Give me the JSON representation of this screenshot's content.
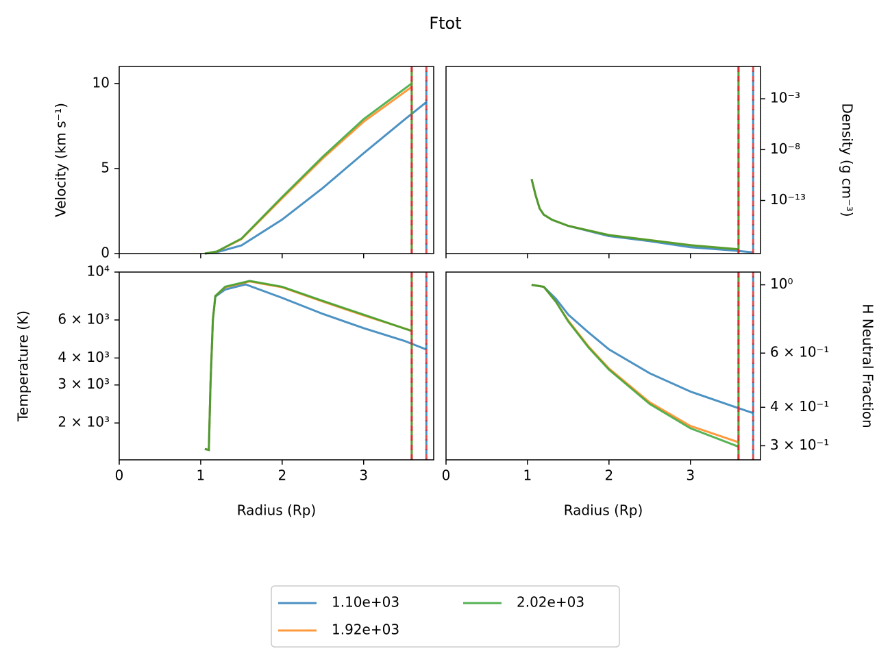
{
  "title": "Ftot",
  "series": [
    {
      "name": "1.10e+03",
      "color": "#1f77b4"
    },
    {
      "name": "1.92e+03",
      "color": "#ff7f0e"
    },
    {
      "name": "2.02e+03",
      "color": "#2ca02c"
    }
  ],
  "vline_color": "#d62728",
  "vlines": [
    {
      "x": 3.77,
      "color": "#1f77b4"
    },
    {
      "x": 3.59,
      "color": "#ff7f0e"
    },
    {
      "x": 3.59,
      "color": "#2ca02c"
    }
  ],
  "chart_data": [
    {
      "type": "line",
      "ylabel": "Velocity (km s⁻¹)",
      "y_side": "left",
      "log_y": false,
      "xlim": [
        0,
        3.86
      ],
      "xticks": [
        0,
        1,
        2,
        3
      ],
      "ylim": [
        0,
        11
      ],
      "yticks": [
        0,
        5,
        10
      ],
      "series": [
        {
          "x": [
            1.05,
            1.2,
            1.5,
            2,
            2.5,
            3,
            3.5,
            3.77
          ],
          "values": [
            0,
            0.08,
            0.48,
            2.0,
            3.86,
            5.9,
            7.87,
            8.9
          ]
        },
        {
          "x": [
            1.05,
            1.2,
            1.5,
            2,
            2.5,
            3,
            3.59
          ],
          "values": [
            0,
            0.12,
            0.85,
            3.25,
            5.6,
            7.75,
            9.8
          ]
        },
        {
          "x": [
            1.05,
            1.2,
            1.5,
            2,
            2.5,
            3,
            3.59
          ],
          "values": [
            0,
            0.13,
            0.88,
            3.33,
            5.7,
            7.9,
            10.0
          ]
        }
      ]
    },
    {
      "type": "line",
      "ylabel": "Density (g cm⁻³)",
      "y_side": "right",
      "log_y": true,
      "xlim": [
        0,
        3.86
      ],
      "xticks": [
        0,
        1,
        2,
        3
      ],
      "ylim": [
        6e-19,
        1.5
      ],
      "yticks": [
        {
          "value": 0.001,
          "label": "10⁻³"
        },
        {
          "value": 1e-08,
          "label": "10⁻⁸"
        },
        {
          "value": 1e-13,
          "label": "10⁻¹³"
        }
      ],
      "series": [
        {
          "x": [
            1.05,
            1.1,
            1.15,
            1.2,
            1.3,
            1.5,
            2,
            2.5,
            3,
            3.5,
            3.77
          ],
          "values": [
            1.26e-11,
            3.16e-13,
            1.58e-14,
            3.98e-15,
            1.26e-15,
            3.16e-16,
            3.16e-17,
            1e-17,
            2.5e-18,
            1.26e-18,
            7.9e-19
          ]
        },
        {
          "x": [
            1.05,
            1.1,
            1.15,
            1.2,
            1.3,
            1.5,
            2,
            2.5,
            3,
            3.59
          ],
          "values": [
            1.26e-11,
            3.16e-13,
            1.58e-14,
            3.98e-15,
            1.26e-15,
            3.16e-16,
            3.98e-17,
            1.26e-17,
            3.98e-18,
            1.58e-18
          ]
        },
        {
          "x": [
            1.05,
            1.1,
            1.15,
            1.2,
            1.3,
            1.5,
            2,
            2.5,
            3,
            3.59
          ],
          "values": [
            1.26e-11,
            3.16e-13,
            1.58e-14,
            3.98e-15,
            1.26e-15,
            3.16e-16,
            3.98e-17,
            1.26e-17,
            3.98e-18,
            1.58e-18
          ]
        }
      ]
    },
    {
      "type": "line",
      "ylabel": "Temperature (K)",
      "xlabel": "Radius (Rp)",
      "y_side": "left",
      "log_y": true,
      "xlim": [
        0,
        3.86
      ],
      "xticks": [
        0,
        1,
        2,
        3
      ],
      "ylim": [
        1350,
        10000
      ],
      "yticks": [
        {
          "value": 2000,
          "label": "2 × 10³"
        },
        {
          "value": 3000,
          "label": "3 × 10³"
        },
        {
          "value": 4000,
          "label": "4 × 10³"
        },
        {
          "value": 6000,
          "label": "6 × 10³"
        },
        {
          "value": 10000,
          "label": "10⁴"
        }
      ],
      "series": [
        {
          "x": [
            1.05,
            1.1,
            1.12,
            1.15,
            1.18,
            1.3,
            1.55,
            2,
            2.5,
            3,
            3.5,
            3.77
          ],
          "values": [
            1515,
            1500,
            3000,
            6000,
            7700,
            8300,
            8770,
            7600,
            6400,
            5500,
            4800,
            4380
          ]
        },
        {
          "x": [
            1.05,
            1.1,
            1.12,
            1.15,
            1.18,
            1.3,
            1.6,
            2,
            2.5,
            3,
            3.59
          ],
          "values": [
            1515,
            1500,
            3000,
            6000,
            7750,
            8500,
            9050,
            8500,
            7300,
            6300,
            5350
          ]
        },
        {
          "x": [
            1.05,
            1.1,
            1.12,
            1.15,
            1.18,
            1.3,
            1.6,
            2,
            2.5,
            3,
            3.59
          ],
          "values": [
            1515,
            1500,
            3000,
            6000,
            7750,
            8550,
            9100,
            8550,
            7350,
            6350,
            5330
          ]
        }
      ]
    },
    {
      "type": "line",
      "ylabel": "H Neutral Fraction",
      "xlabel": "Radius (Rp)",
      "y_side": "right",
      "log_y": true,
      "xlim": [
        0,
        3.86
      ],
      "xticks": [
        0,
        1,
        2,
        3
      ],
      "ylim": [
        0.27,
        1.1
      ],
      "yticks": [
        {
          "value": 1,
          "label": "10⁰"
        },
        {
          "value": 0.6,
          "label": "6 × 10⁻¹"
        },
        {
          "value": 0.4,
          "label": "4 × 10⁻¹"
        },
        {
          "value": 0.3,
          "label": "3 × 10⁻¹"
        }
      ],
      "series": [
        {
          "x": [
            1.05,
            1.2,
            1.35,
            1.5,
            1.75,
            2,
            2.5,
            3,
            3.5,
            3.77
          ],
          "values": [
            1.0,
            0.985,
            0.9,
            0.8,
            0.7,
            0.617,
            0.516,
            0.45,
            0.405,
            0.383
          ]
        },
        {
          "x": [
            1.05,
            1.2,
            1.35,
            1.5,
            1.75,
            2,
            2.5,
            3,
            3.59
          ],
          "values": [
            1.0,
            0.985,
            0.88,
            0.765,
            0.63,
            0.535,
            0.415,
            0.348,
            0.308
          ]
        },
        {
          "x": [
            1.05,
            1.2,
            1.35,
            1.5,
            1.75,
            2,
            2.5,
            3,
            3.59
          ],
          "values": [
            1.0,
            0.985,
            0.88,
            0.76,
            0.625,
            0.53,
            0.41,
            0.342,
            0.298
          ]
        }
      ]
    }
  ]
}
